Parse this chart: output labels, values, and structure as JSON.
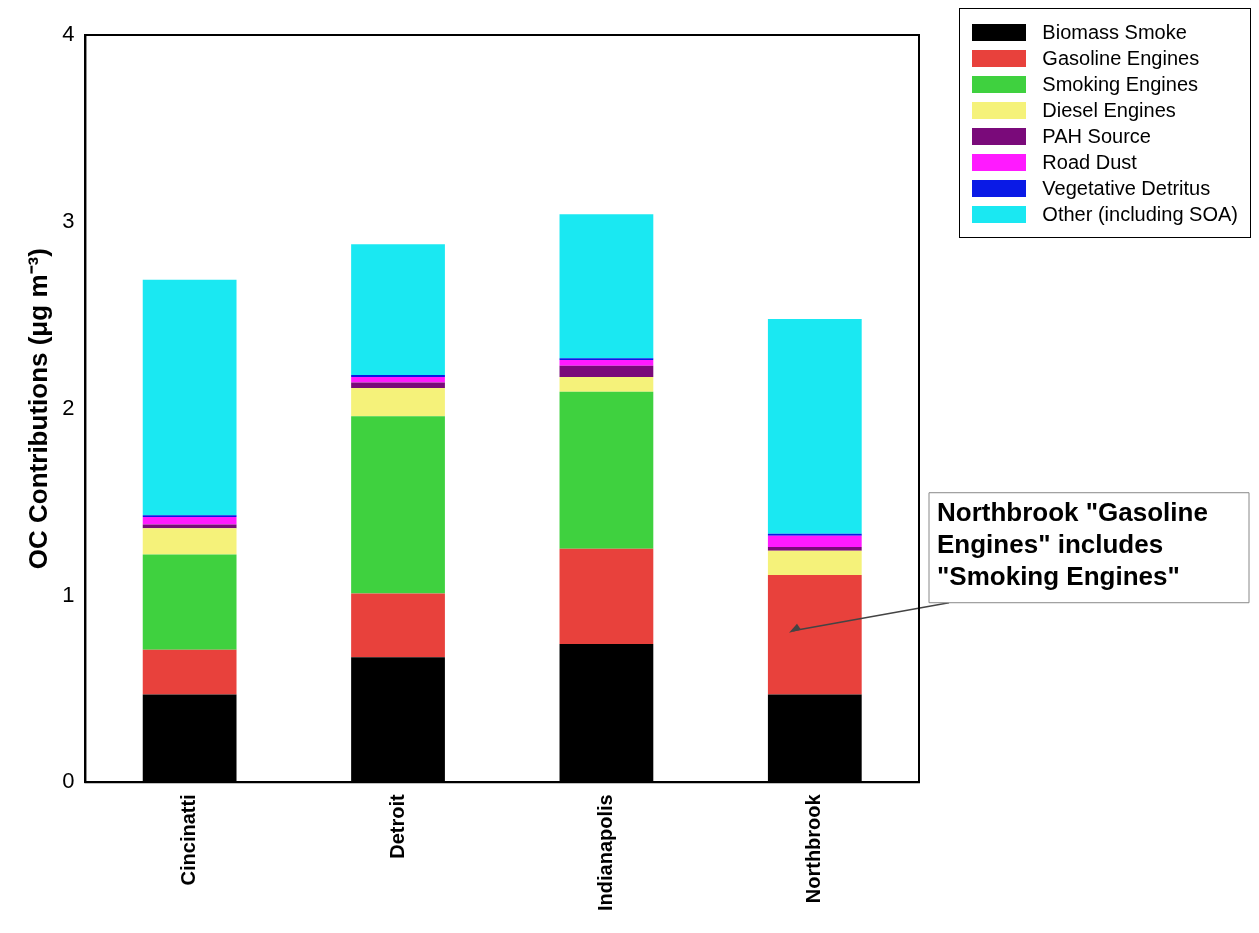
{
  "chart_data": {
    "type": "bar",
    "stacked": true,
    "ylabel": "OC Contributions (μg m⁻³)",
    "categories": [
      "Cincinatti",
      "Detroit",
      "Indianapolis",
      "Northbrook"
    ],
    "series": [
      {
        "name": "Biomass Smoke",
        "color": "#000000",
        "values": [
          0.47,
          0.67,
          0.74,
          0.47
        ]
      },
      {
        "name": "Gasoline Engines",
        "color": "#e8413c",
        "values": [
          0.24,
          0.34,
          0.51,
          0.64
        ]
      },
      {
        "name": "Smoking Engines",
        "color": "#3fd13f",
        "values": [
          0.51,
          0.95,
          0.84,
          0
        ]
      },
      {
        "name": "Diesel Engines",
        "color": "#f5f27a",
        "values": [
          0.14,
          0.15,
          0.08,
          0.13
        ]
      },
      {
        "name": "PAH Source",
        "color": "#7a0a7a",
        "values": [
          0.02,
          0.03,
          0.06,
          0.02
        ]
      },
      {
        "name": "Road Dust",
        "color": "#ff1aff",
        "values": [
          0.04,
          0.03,
          0.03,
          0.06
        ]
      },
      {
        "name": "Vegetative Detritus",
        "color": "#0a1ae6",
        "values": [
          0.01,
          0.01,
          0.01,
          0.01
        ]
      },
      {
        "name": "Other (including SOA)",
        "color": "#1ae8f2",
        "values": [
          1.26,
          0.7,
          0.77,
          1.15
        ]
      }
    ],
    "ylim": [
      0,
      4
    ],
    "yticks": [
      0,
      1,
      2,
      3,
      4
    ],
    "grid": false,
    "legend": "top right",
    "annotations": [
      "Northbrook \"Gasoline Engines\"  includes \"Smoking Engines\""
    ]
  }
}
